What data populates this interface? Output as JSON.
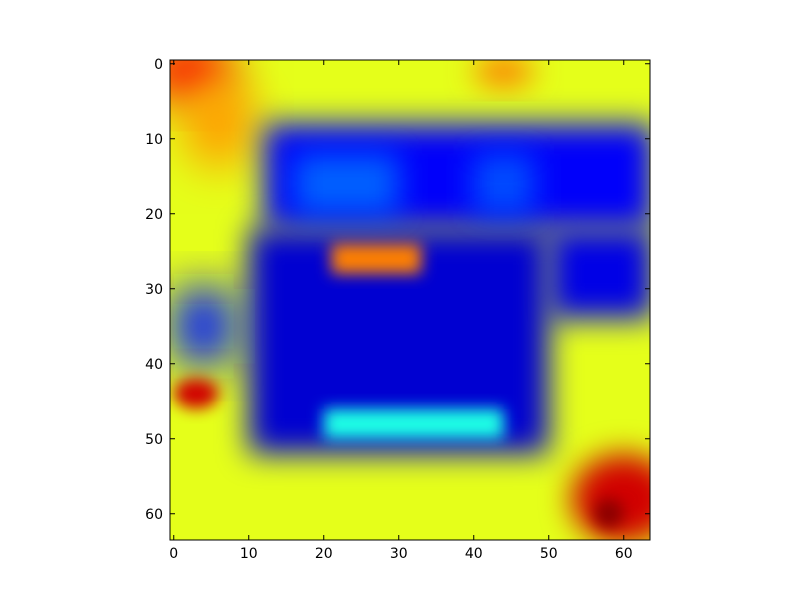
{
  "chart_data": {
    "type": "heatmap",
    "title": "",
    "xlabel": "",
    "ylabel": "",
    "colormap": "jet",
    "interpolation": "smooth",
    "x_range": [
      -0.5,
      63.5
    ],
    "y_range": [
      -0.5,
      63.5
    ],
    "y_axis_inverted": true,
    "grid": false,
    "x_ticks": [
      0,
      10,
      20,
      30,
      40,
      50,
      60
    ],
    "y_ticks": [
      0,
      10,
      20,
      30,
      40,
      50,
      60
    ],
    "x_tick_labels": [
      "0",
      "10",
      "20",
      "30",
      "40",
      "50",
      "60"
    ],
    "y_tick_labels": [
      "0",
      "10",
      "20",
      "30",
      "40",
      "50",
      "60"
    ],
    "value_range": [
      0,
      1
    ],
    "description_of_values": "approximate normalized intensity 0 (dark blue) to 1 (dark red)",
    "background_value": 0.6,
    "regions": [
      {
        "shape": "ellipse",
        "cx": 2,
        "cy": 1,
        "rx": 6,
        "ry": 4,
        "value": 0.88,
        "blur": 3
      },
      {
        "shape": "ellipse",
        "cx": 6,
        "cy": 8,
        "rx": 5,
        "ry": 6,
        "value": 0.72,
        "blur": 3
      },
      {
        "shape": "ellipse",
        "cx": 44,
        "cy": 1,
        "rx": 4,
        "ry": 2,
        "value": 0.76,
        "blur": 2
      },
      {
        "shape": "rect",
        "x0": 12,
        "y0": 8,
        "x1": 64,
        "y1": 22,
        "value": 0.12,
        "blur": 2
      },
      {
        "shape": "rect",
        "x0": 10,
        "y0": 22,
        "x1": 50,
        "y1": 52,
        "value": 0.08,
        "blur": 2
      },
      {
        "shape": "rect",
        "x0": 50,
        "y0": 22,
        "x1": 64,
        "y1": 34,
        "value": 0.1,
        "blur": 2
      },
      {
        "shape": "rect",
        "x0": 0,
        "y0": 30,
        "x1": 8,
        "y1": 40,
        "value": 0.15,
        "blur": 3
      },
      {
        "shape": "rect",
        "x0": 16,
        "y0": 12,
        "x1": 30,
        "y1": 20,
        "value": 0.22,
        "blur": 2
      },
      {
        "shape": "rect",
        "x0": 40,
        "y0": 12,
        "x1": 48,
        "y1": 20,
        "value": 0.2,
        "blur": 2
      },
      {
        "shape": "rect",
        "x0": 20,
        "y0": 46,
        "x1": 44,
        "y1": 50,
        "value": 0.4,
        "blur": 1
      },
      {
        "shape": "rect",
        "x0": 21,
        "y0": 24,
        "x1": 33,
        "y1": 28,
        "value": 0.75,
        "blur": 1
      },
      {
        "shape": "ellipse",
        "cx": 3,
        "cy": 44,
        "rx": 3,
        "ry": 2,
        "value": 0.92,
        "blur": 1
      },
      {
        "shape": "ellipse",
        "cx": 60,
        "cy": 58,
        "rx": 7,
        "ry": 6,
        "value": 0.92,
        "blur": 2
      },
      {
        "shape": "ellipse",
        "cx": 58,
        "cy": 60,
        "rx": 2,
        "ry": 2,
        "value": 0.99,
        "blur": 1
      }
    ]
  }
}
